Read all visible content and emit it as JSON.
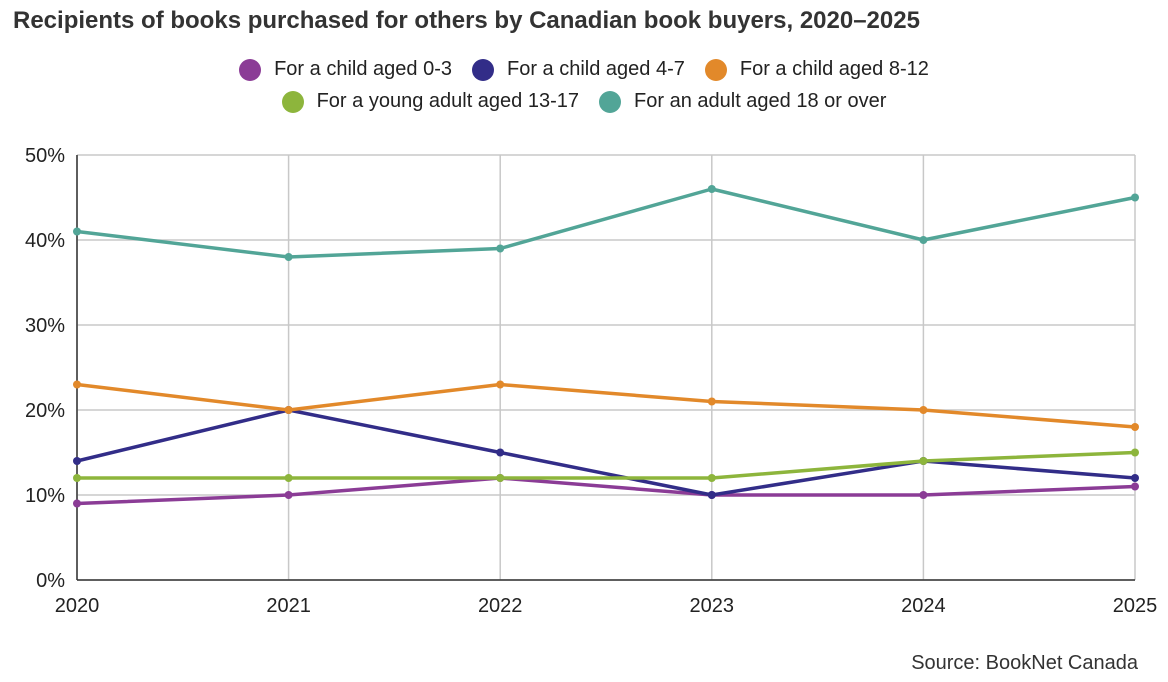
{
  "chart_data": {
    "type": "line",
    "title": "Recipients of books purchased for others by Canadian book buyers, 2020–2025",
    "x": [
      "2020",
      "2021",
      "2022",
      "2023",
      "2024",
      "2025"
    ],
    "ylim": [
      0,
      50
    ],
    "y_ticks": [
      0,
      10,
      20,
      30,
      40,
      50
    ],
    "y_tick_labels": [
      "0%",
      "10%",
      "20%",
      "30%",
      "40%",
      "50%"
    ],
    "grid": true,
    "legend_position": "top-center",
    "series": [
      {
        "name": "For a child aged 0-3",
        "color": "#8b3c96",
        "values": [
          9,
          10,
          12,
          10,
          10,
          11
        ]
      },
      {
        "name": "For a child aged 4-7",
        "color": "#322d88",
        "values": [
          14,
          20,
          15,
          10,
          14,
          12
        ]
      },
      {
        "name": "For a child aged 8-12",
        "color": "#e2892a",
        "values": [
          23,
          20,
          23,
          21,
          20,
          18
        ]
      },
      {
        "name": "For a young adult aged 13-17",
        "color": "#8db53c",
        "values": [
          12,
          12,
          12,
          12,
          14,
          15
        ]
      },
      {
        "name": "For an adult aged 18 or over",
        "color": "#52a597",
        "values": [
          41,
          38,
          39,
          46,
          40,
          45
        ]
      }
    ],
    "source": "Source: BookNet Canada"
  }
}
